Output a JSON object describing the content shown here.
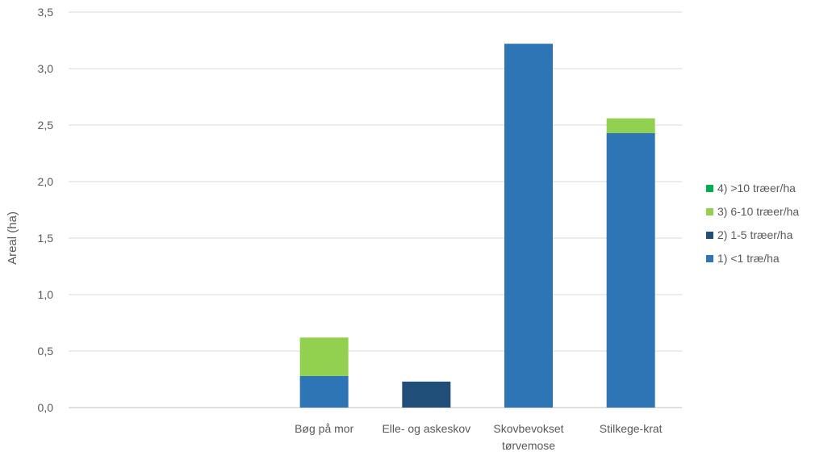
{
  "chart_data": {
    "type": "bar",
    "stacked": true,
    "categories": [
      "",
      "",
      "Bøg på mor",
      "Elle- og askeskov",
      "Skovbevokset tørvemose",
      "Stilkege-krat"
    ],
    "category_lines": [
      [
        ""
      ],
      [
        ""
      ],
      [
        "Bøg på mor"
      ],
      [
        "Elle- og askeskov"
      ],
      [
        "Skovbevokset",
        "tørvemose"
      ],
      [
        "Stilkege-krat"
      ]
    ],
    "series": [
      {
        "name": "1) <1 træ/ha",
        "color": "#2E75B6",
        "values": [
          0,
          0,
          0.28,
          0,
          3.22,
          2.43
        ]
      },
      {
        "name": "2) 1-5 træer/ha",
        "color": "#1F4E79",
        "values": [
          0,
          0,
          0,
          0.23,
          0,
          0
        ]
      },
      {
        "name": "3) 6-10 træer/ha",
        "color": "#92D050",
        "values": [
          0,
          0,
          0.34,
          0,
          0,
          0.13
        ]
      },
      {
        "name": "4) >10 træer/ha",
        "color": "#00B050",
        "values": [
          0,
          0,
          0,
          0,
          0,
          0
        ]
      }
    ],
    "legend_order": [
      3,
      2,
      1,
      0
    ],
    "title": "",
    "xlabel": "",
    "ylabel": "Areal (ha)",
    "ylim": [
      0,
      3.5
    ],
    "yticks": [
      "0,0",
      "0,5",
      "1,0",
      "1,5",
      "2,0",
      "2,5",
      "3,0",
      "3,5"
    ],
    "grid": true,
    "legend_position": "right"
  }
}
